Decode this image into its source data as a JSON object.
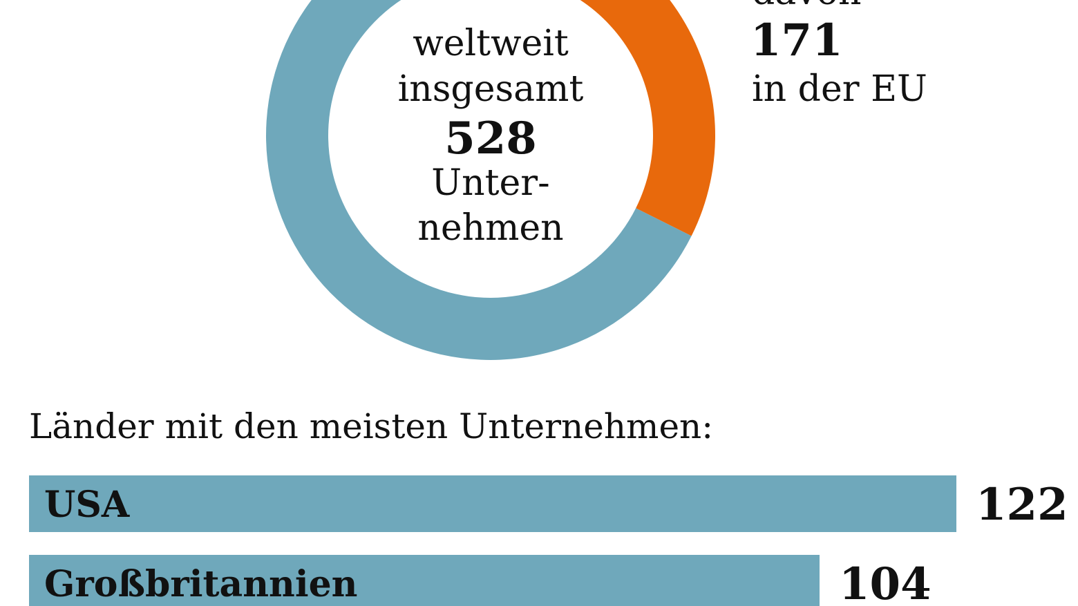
{
  "colors": {
    "accent_orange": "#e8690c",
    "accent_blue": "#6fa8bb",
    "text": "#111111",
    "background": "#ffffff"
  },
  "donut": {
    "center_line1": "weltweit",
    "center_line2": "insgesamt",
    "center_value": "528",
    "center_line4": "Unter-",
    "center_line5": "nehmen",
    "eu_prefix": "davon",
    "eu_value": "171",
    "eu_suffix": "in der EU"
  },
  "countries_heading": "Länder mit den meisten Unternehmen:",
  "chart_data": [
    {
      "type": "pie",
      "total": 528,
      "slices": [
        {
          "label": "in der EU",
          "value": 171,
          "color": "#e8690c"
        },
        {
          "label": "",
          "value": 357,
          "color": "#6fa8bb"
        }
      ]
    },
    {
      "type": "bar",
      "orientation": "horizontal",
      "title": "Länder mit den meisten Unternehmen:",
      "categories": [
        "USA",
        "Großbritannien"
      ],
      "values": [
        122,
        104
      ],
      "color": "#6fa8bb"
    }
  ]
}
